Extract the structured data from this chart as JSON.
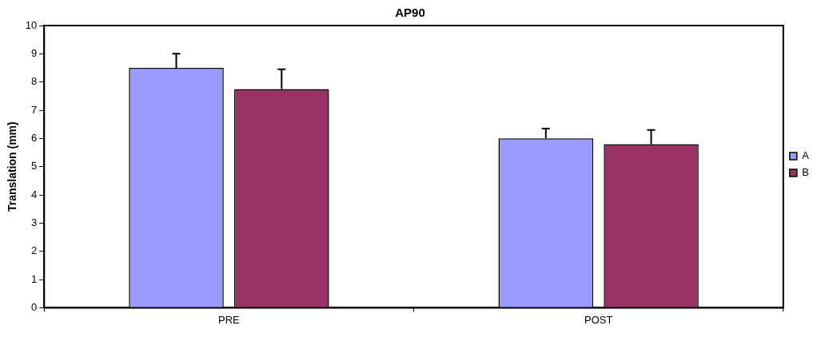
{
  "chart_data": {
    "type": "bar",
    "title": "AP90",
    "ylabel": "Translation (mm)",
    "categories": [
      "PRE",
      "POST"
    ],
    "series": [
      {
        "name": "A",
        "color": "#9999ff",
        "values": [
          8.5,
          6.0
        ],
        "errors": [
          [
            8.5,
            9.0
          ],
          [
            6.0,
            6.35
          ]
        ]
      },
      {
        "name": "B",
        "color": "#993366",
        "values": [
          7.75,
          5.8
        ],
        "errors": [
          [
            7.75,
            8.45
          ],
          [
            5.8,
            6.3
          ]
        ]
      }
    ],
    "ylim": [
      0,
      10
    ],
    "yticks": [
      0,
      1,
      2,
      3,
      4,
      5,
      6,
      7,
      8,
      9,
      10
    ],
    "grid": false,
    "legend": "right"
  }
}
